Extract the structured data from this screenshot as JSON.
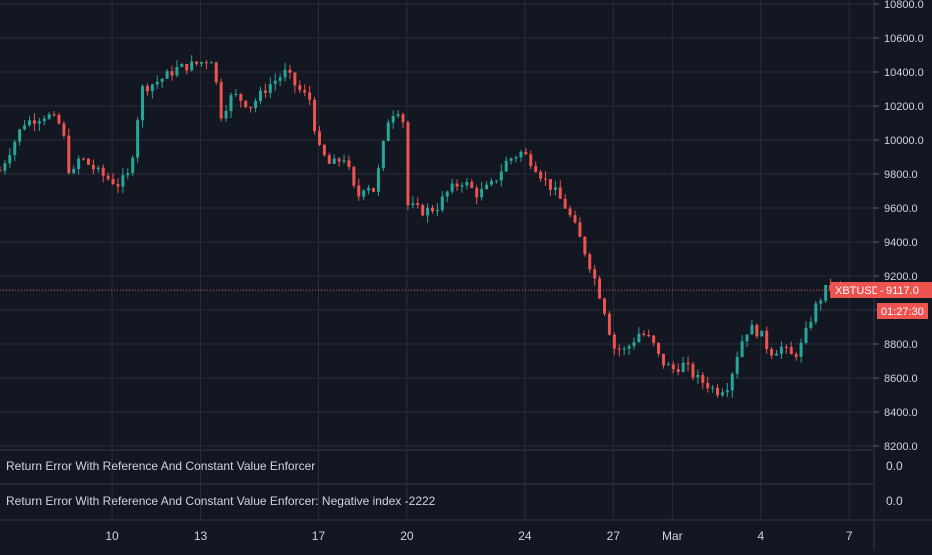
{
  "theme": {
    "background": "#131722",
    "grid": "#2a2e39",
    "text": "#d1d4dc",
    "up_color": "#26a69a",
    "down_color": "#ef5350",
    "price_line_color": "#ef5350"
  },
  "instrument": {
    "symbol": "XBTUSD",
    "last_price": "9117.0",
    "countdown": "01:27:30"
  },
  "panes": [
    {
      "title": "Return Error With Reference And Constant Value Enforcer",
      "value": "0.0"
    },
    {
      "title": "Return Error With Reference And Constant Value Enforcer: Negative index -2222",
      "value": "0.0"
    }
  ],
  "chart_data": {
    "type": "candlestick",
    "ylim": [
      8200,
      10800
    ],
    "y_ticks": [
      "8200.0",
      "8400.0",
      "8600.0",
      "8800.0",
      "9000.0",
      "9200.0",
      "9400.0",
      "9600.0",
      "9800.0",
      "10000.0",
      "10200.0",
      "10400.0",
      "10600.0",
      "10800.0"
    ],
    "y_tick_values": [
      8200,
      8400,
      8600,
      8800,
      9000,
      9200,
      9400,
      9600,
      9800,
      10000,
      10200,
      10400,
      10600,
      10800
    ],
    "x_ticks": [
      "10",
      "13",
      "17",
      "20",
      "24",
      "27",
      "Mar",
      "4",
      "7"
    ],
    "x_tick_days": [
      10,
      13,
      17,
      20,
      24,
      27,
      29,
      32,
      35
    ],
    "x_range_days": [
      6.2,
      35.5
    ],
    "grid": true,
    "price_line": 9117.0,
    "ohlc_keyframes": [
      {
        "day": 6.2,
        "close": 9820
      },
      {
        "day": 7.0,
        "close": 10100
      },
      {
        "day": 7.8,
        "close": 10150
      },
      {
        "day": 8.3,
        "close": 10080
      },
      {
        "day": 8.6,
        "close": 9760
      },
      {
        "day": 8.9,
        "close": 9900
      },
      {
        "day": 9.6,
        "close": 9800
      },
      {
        "day": 10.2,
        "close": 9740
      },
      {
        "day": 10.6,
        "close": 9800
      },
      {
        "day": 11.0,
        "close": 10300
      },
      {
        "day": 11.6,
        "close": 10350
      },
      {
        "day": 12.2,
        "close": 10420
      },
      {
        "day": 12.9,
        "close": 10450
      },
      {
        "day": 13.4,
        "close": 10480
      },
      {
        "day": 13.7,
        "close": 10150
      },
      {
        "day": 14.1,
        "close": 10270
      },
      {
        "day": 14.7,
        "close": 10200
      },
      {
        "day": 15.3,
        "close": 10320
      },
      {
        "day": 15.9,
        "close": 10400
      },
      {
        "day": 16.3,
        "close": 10300
      },
      {
        "day": 16.7,
        "close": 10240
      },
      {
        "day": 17.0,
        "close": 9950
      },
      {
        "day": 17.4,
        "close": 9850
      },
      {
        "day": 17.9,
        "close": 9900
      },
      {
        "day": 18.3,
        "close": 9650
      },
      {
        "day": 18.6,
        "close": 9750
      },
      {
        "day": 18.9,
        "close": 9700
      },
      {
        "day": 19.4,
        "close": 10150
      },
      {
        "day": 19.7,
        "close": 10180
      },
      {
        "day": 19.9,
        "close": 10100
      },
      {
        "day": 20.0,
        "close": 9620
      },
      {
        "day": 20.5,
        "close": 9580
      },
      {
        "day": 21.0,
        "close": 9600
      },
      {
        "day": 21.4,
        "close": 9700
      },
      {
        "day": 21.9,
        "close": 9760
      },
      {
        "day": 22.4,
        "close": 9680
      },
      {
        "day": 22.9,
        "close": 9740
      },
      {
        "day": 23.4,
        "close": 9880
      },
      {
        "day": 23.9,
        "close": 9930
      },
      {
        "day": 24.3,
        "close": 9860
      },
      {
        "day": 24.6,
        "close": 9780
      },
      {
        "day": 25.0,
        "close": 9700
      },
      {
        "day": 25.4,
        "close": 9600
      },
      {
        "day": 25.8,
        "close": 9450
      },
      {
        "day": 26.3,
        "close": 9220
      },
      {
        "day": 26.7,
        "close": 9000
      },
      {
        "day": 27.0,
        "close": 8780
      },
      {
        "day": 27.4,
        "close": 8760
      },
      {
        "day": 27.9,
        "close": 8870
      },
      {
        "day": 28.3,
        "close": 8820
      },
      {
        "day": 28.6,
        "close": 8700
      },
      {
        "day": 29.0,
        "close": 8650
      },
      {
        "day": 29.4,
        "close": 8680
      },
      {
        "day": 29.8,
        "close": 8600
      },
      {
        "day": 30.2,
        "close": 8560
      },
      {
        "day": 30.5,
        "close": 8520
      },
      {
        "day": 30.9,
        "close": 8560
      },
      {
        "day": 31.3,
        "close": 8800
      },
      {
        "day": 31.6,
        "close": 8900
      },
      {
        "day": 32.0,
        "close": 8860
      },
      {
        "day": 32.3,
        "close": 8750
      },
      {
        "day": 32.7,
        "close": 8780
      },
      {
        "day": 33.1,
        "close": 8720
      },
      {
        "day": 33.4,
        "close": 8800
      },
      {
        "day": 33.8,
        "close": 9000
      },
      {
        "day": 34.2,
        "close": 9120
      },
      {
        "day": 34.6,
        "close": 9130
      },
      {
        "day": 35.0,
        "close": 9117
      }
    ]
  }
}
